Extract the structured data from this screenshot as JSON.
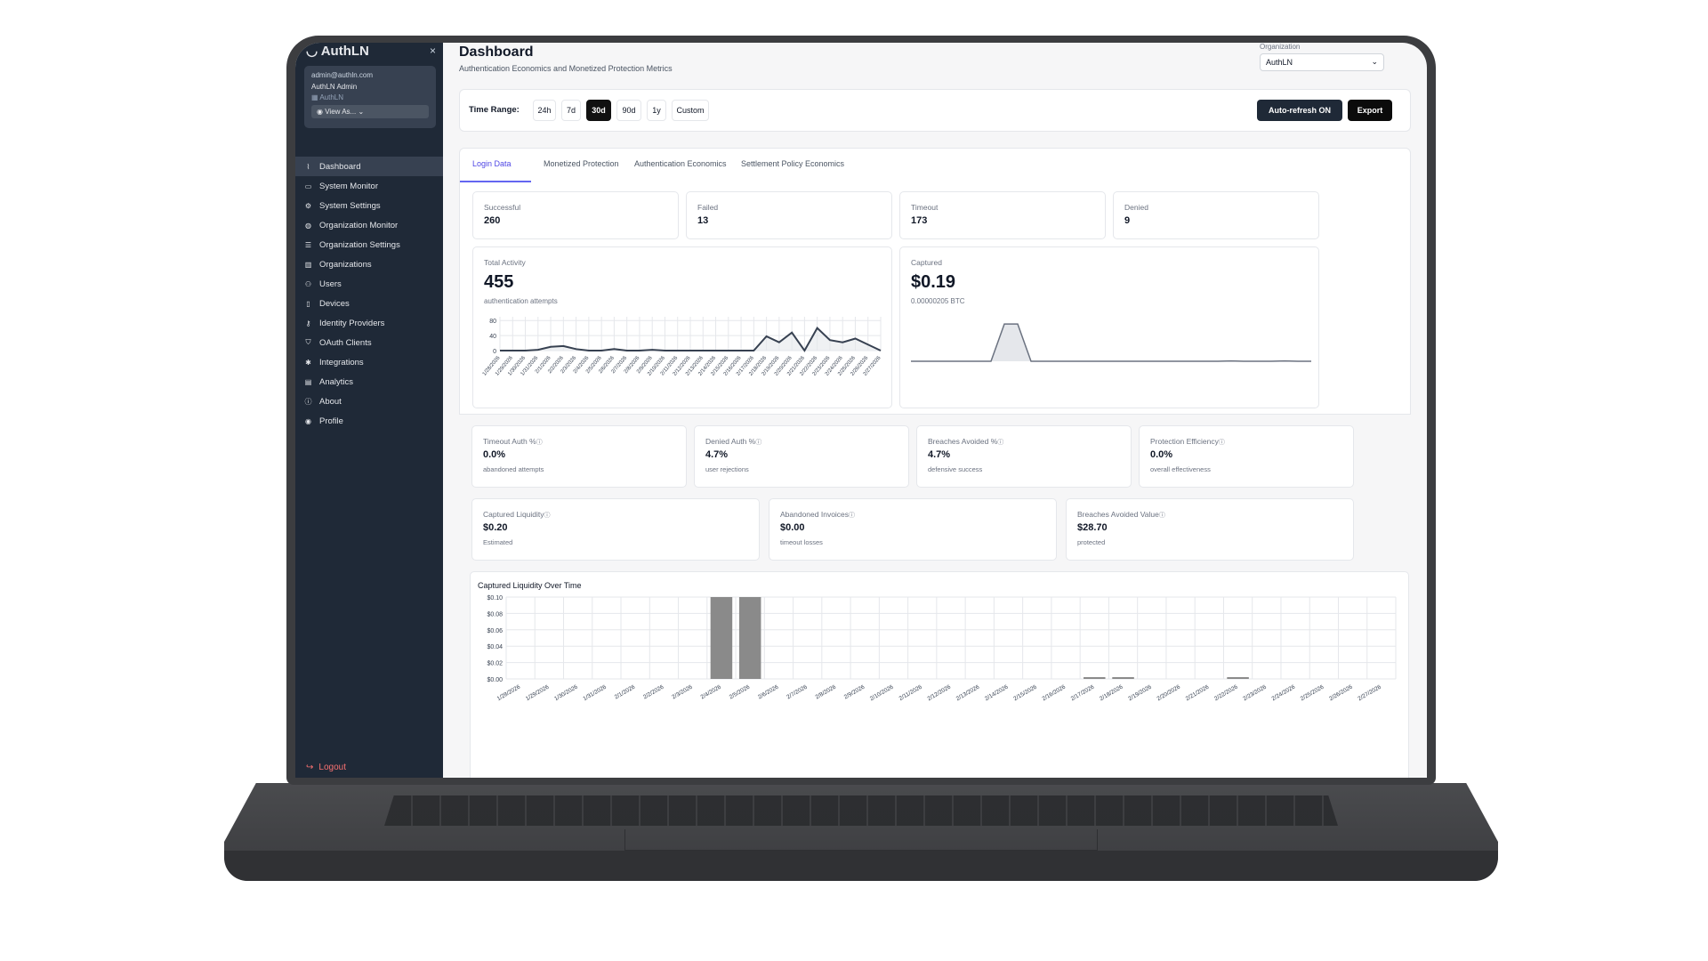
{
  "sidebar": {
    "brand": "AuthLN",
    "close": "×",
    "user_email": "admin@authln.com",
    "user_name": "AuthLN Admin",
    "user_org": "AuthLN",
    "view_as": "View As...",
    "items": [
      {
        "label": "Dashboard",
        "icon": "chart-line-icon"
      },
      {
        "label": "System Monitor",
        "icon": "monitor-icon"
      },
      {
        "label": "System Settings",
        "icon": "gears-icon"
      },
      {
        "label": "Organization Monitor",
        "icon": "globe-icon"
      },
      {
        "label": "Organization Settings",
        "icon": "list-settings-icon"
      },
      {
        "label": "Organizations",
        "icon": "building-icon"
      },
      {
        "label": "Users",
        "icon": "users-icon"
      },
      {
        "label": "Devices",
        "icon": "device-icon"
      },
      {
        "label": "Identity Providers",
        "icon": "key-icon"
      },
      {
        "label": "OAuth Clients",
        "icon": "shield-icon"
      },
      {
        "label": "Integrations",
        "icon": "puzzle-icon"
      },
      {
        "label": "Analytics",
        "icon": "bar-chart-icon"
      },
      {
        "label": "About",
        "icon": "info-icon"
      },
      {
        "label": "Profile",
        "icon": "user-circle-icon"
      }
    ],
    "logout": "Logout"
  },
  "header": {
    "title": "Dashboard",
    "subtitle": "Authentication Economics and Monetized Protection Metrics",
    "org_label": "Organization",
    "org_value": "AuthLN"
  },
  "toolbar": {
    "time_range_label": "Time Range:",
    "ranges": [
      "24h",
      "7d",
      "30d",
      "90d",
      "1y",
      "Custom"
    ],
    "active_range": "30d",
    "auto_refresh": "Auto-refresh ON",
    "export": "Export"
  },
  "tabs": [
    "Login Data",
    "Monetized Protection",
    "Authentication Economics",
    "Settlement Policy Economics"
  ],
  "stats": [
    {
      "label": "Successful",
      "value": "260"
    },
    {
      "label": "Failed",
      "value": "13"
    },
    {
      "label": "Timeout",
      "value": "173"
    },
    {
      "label": "Denied",
      "value": "9"
    }
  ],
  "total_activity": {
    "label": "Total Activity",
    "value": "455",
    "sub": "authentication attempts"
  },
  "captured": {
    "label": "Captured",
    "value": "$0.19",
    "sub": "0.00000205 BTC"
  },
  "rates": [
    {
      "label": "Timeout Auth %",
      "value": "0.0%",
      "sub": "abandoned attempts"
    },
    {
      "label": "Denied Auth %",
      "value": "4.7%",
      "sub": "user rejections"
    },
    {
      "label": "Breaches Avoided %",
      "value": "4.7%",
      "sub": "defensive success"
    },
    {
      "label": "Protection Efficiency",
      "value": "0.0%",
      "sub": "overall effectiveness"
    }
  ],
  "values": [
    {
      "label": "Captured Liquidity",
      "value": "$0.20",
      "sub": "Estimated"
    },
    {
      "label": "Abandoned Invoices",
      "value": "$0.00",
      "sub": "timeout losses"
    },
    {
      "label": "Breaches Avoided Value",
      "value": "$28.70",
      "sub": "protected"
    }
  ],
  "info_icon": "ⓘ",
  "chart_data": [
    {
      "type": "area",
      "yticks": [
        "80",
        "40",
        "0"
      ],
      "ylim": [
        0,
        90
      ],
      "x": [
        "1/28/2026",
        "1/29/2026",
        "1/30/2026",
        "1/31/2026",
        "2/1/2026",
        "2/2/2026",
        "2/3/2026",
        "2/4/2026",
        "2/5/2026",
        "2/6/2026",
        "2/7/2026",
        "2/8/2026",
        "2/9/2026",
        "2/10/2026",
        "2/11/2026",
        "2/12/2026",
        "2/13/2026",
        "2/14/2026",
        "2/15/2026",
        "2/16/2026",
        "2/17/2026",
        "2/18/2026",
        "2/19/2026",
        "2/20/2026",
        "2/21/2026",
        "2/22/2026",
        "2/23/2026",
        "2/24/2026",
        "2/25/2026",
        "2/26/2026",
        "2/27/2026"
      ],
      "values": [
        0,
        0,
        0,
        2,
        10,
        12,
        4,
        0,
        0,
        4,
        0,
        0,
        2,
        0,
        0,
        0,
        0,
        0,
        0,
        0,
        0,
        38,
        22,
        48,
        0,
        60,
        28,
        22,
        32,
        16,
        0
      ]
    },
    {
      "type": "area",
      "x": [
        "1/28/2026",
        "1/29/2026",
        "1/30/2026",
        "1/31/2026",
        "2/1/2026",
        "2/2/2026",
        "2/3/2026",
        "2/4/2026",
        "2/5/2026",
        "2/6/2026",
        "2/7/2026",
        "2/8/2026",
        "2/9/2026",
        "2/10/2026",
        "2/11/2026",
        "2/12/2026",
        "2/13/2026",
        "2/14/2026",
        "2/15/2026",
        "2/16/2026",
        "2/17/2026",
        "2/18/2026",
        "2/19/2026",
        "2/20/2026",
        "2/21/2026",
        "2/22/2026",
        "2/23/2026",
        "2/24/2026",
        "2/25/2026",
        "2/26/2026",
        "2/27/2026"
      ],
      "values": [
        0,
        0,
        0,
        0,
        0,
        0,
        0,
        0.1,
        0.1,
        0,
        0,
        0,
        0,
        0,
        0,
        0,
        0,
        0,
        0,
        0,
        0,
        0,
        0,
        0,
        0.001,
        0,
        0,
        0,
        0.001,
        0,
        0
      ],
      "ylim": [
        0,
        0.11
      ]
    },
    {
      "type": "bar",
      "title": "Captured Liquidity Over Time",
      "yticks": [
        "$0.10",
        "$0.08",
        "$0.06",
        "$0.04",
        "$0.02",
        "$0.00"
      ],
      "ylim": [
        0,
        0.1
      ],
      "categories": [
        "1/28/2026",
        "1/29/2026",
        "1/30/2026",
        "1/31/2026",
        "2/1/2026",
        "2/2/2026",
        "2/3/2026",
        "2/4/2026",
        "2/5/2026",
        "2/6/2026",
        "2/7/2026",
        "2/8/2026",
        "2/9/2026",
        "2/10/2026",
        "2/11/2026",
        "2/12/2026",
        "2/13/2026",
        "2/14/2026",
        "2/15/2026",
        "2/16/2026",
        "2/17/2026",
        "2/18/2026",
        "2/19/2026",
        "2/20/2026",
        "2/21/2026",
        "2/22/2026",
        "2/23/2026",
        "2/24/2026",
        "2/25/2026",
        "2/26/2026",
        "2/27/2026"
      ],
      "values": [
        0,
        0,
        0,
        0,
        0,
        0,
        0,
        0.1,
        0.1,
        0,
        0,
        0,
        0,
        0,
        0,
        0,
        0,
        0,
        0,
        0,
        0.002,
        0.001,
        0,
        0,
        0,
        0.002,
        0,
        0,
        0,
        0,
        0
      ]
    }
  ],
  "colors": {
    "sidebar": "#1f2937",
    "accent": "#6366f1",
    "chart_line": "#374151",
    "bar": "#8a8a8a"
  }
}
